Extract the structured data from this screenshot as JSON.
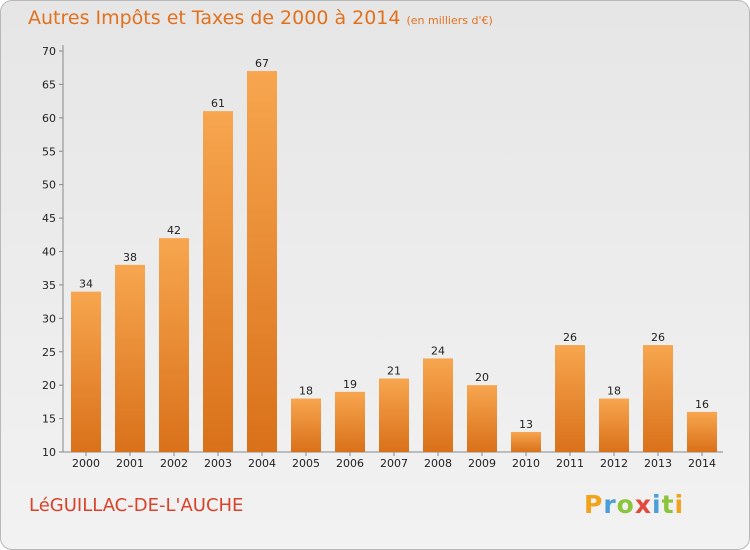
{
  "title": "Autres Impôts et Taxes de 2000 à 2014",
  "subtitle": "(en milliers d'€)",
  "city": "LéGUILLAC-DE-L'AUCHE",
  "logo": [
    "P",
    "r",
    "o",
    "x",
    "i",
    "t",
    "i"
  ],
  "colors": {
    "bar_top": "#f7a64f",
    "bar_bottom": "#d9711a",
    "title": "#e2711e",
    "city": "#d9432b"
  },
  "chart_data": {
    "type": "bar",
    "title": "Autres Impôts et Taxes de 2000 à 2014",
    "subtitle": "(en milliers d'€)",
    "categories": [
      "2000",
      "2001",
      "2002",
      "2003",
      "2004",
      "2005",
      "2006",
      "2007",
      "2008",
      "2009",
      "2010",
      "2011",
      "2012",
      "2013",
      "2014"
    ],
    "values": [
      34,
      38,
      42,
      61,
      67,
      18,
      19,
      21,
      24,
      20,
      13,
      26,
      18,
      26,
      16
    ],
    "ylim": [
      10,
      70
    ],
    "yticks": [
      10,
      15,
      20,
      25,
      30,
      35,
      40,
      45,
      50,
      55,
      60,
      65,
      70
    ],
    "grid": false,
    "data_labels": true
  }
}
